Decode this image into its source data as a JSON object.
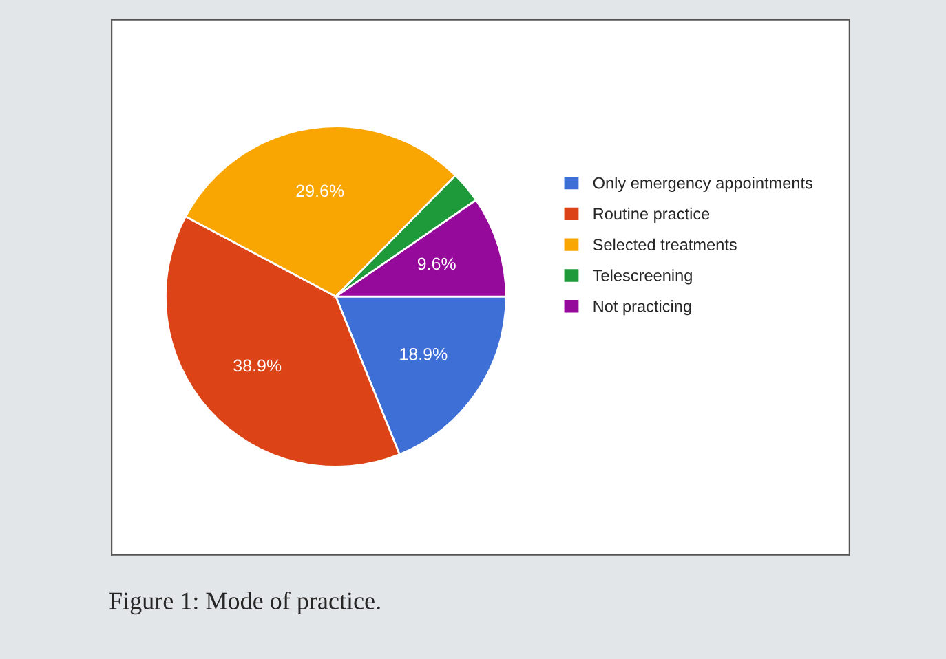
{
  "chart_data": {
    "type": "pie",
    "categories": [
      "Only emergency appointments",
      "Routine practice",
      "Selected treatments",
      "Telescreening",
      "Not practicing"
    ],
    "values": [
      18.9,
      38.9,
      29.6,
      3.0,
      9.6
    ],
    "colors": [
      "#3d6fd6",
      "#dc4316",
      "#f9a602",
      "#1e9a3a",
      "#950a9a"
    ],
    "value_labels": [
      "18.9%",
      "38.9%",
      "29.6%",
      null,
      "9.6%"
    ],
    "legend": "right",
    "annotations": [
      "Figure 1: Mode of practice."
    ]
  }
}
